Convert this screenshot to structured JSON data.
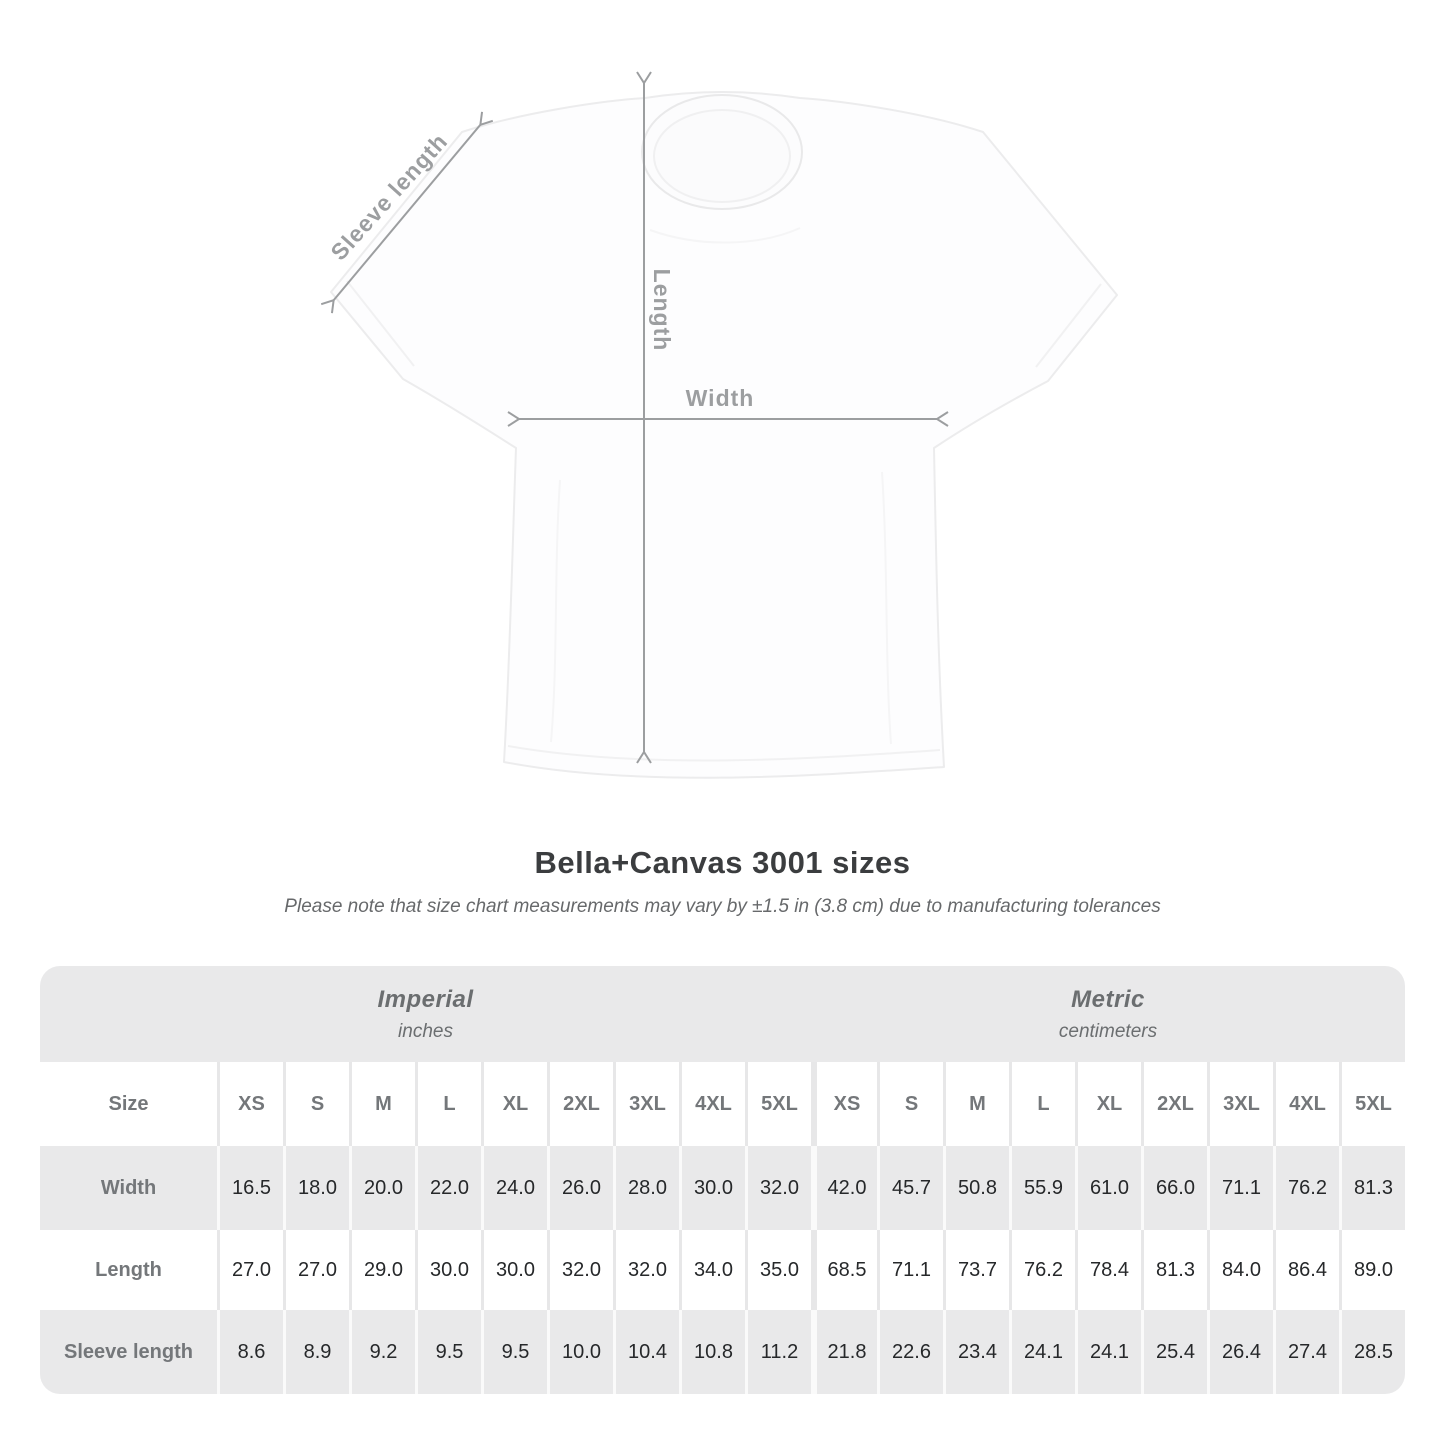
{
  "diagram": {
    "sleeve_label": "Sleeve length",
    "length_label": "Length",
    "width_label": "Width"
  },
  "title": "Bella+Canvas 3001 sizes",
  "subtitle": "Please note that size chart measurements may vary by ±1.5 in (3.8 cm) due to manufacturing tolerances",
  "table": {
    "groups": [
      {
        "name": "Imperial",
        "unit": "inches"
      },
      {
        "name": "Metric",
        "unit": "centimeters"
      }
    ],
    "size_header": "Size",
    "sizes": [
      "XS",
      "S",
      "M",
      "L",
      "XL",
      "2XL",
      "3XL",
      "4XL",
      "5XL"
    ],
    "rows": [
      {
        "label": "Width",
        "imperial": [
          "16.5",
          "18.0",
          "20.0",
          "22.0",
          "24.0",
          "26.0",
          "28.0",
          "30.0",
          "32.0"
        ],
        "metric": [
          "42.0",
          "45.7",
          "50.8",
          "55.9",
          "61.0",
          "66.0",
          "71.1",
          "76.2",
          "81.3"
        ]
      },
      {
        "label": "Length",
        "imperial": [
          "27.0",
          "27.0",
          "29.0",
          "30.0",
          "30.0",
          "32.0",
          "32.0",
          "34.0",
          "35.0"
        ],
        "metric": [
          "68.5",
          "71.1",
          "73.7",
          "76.2",
          "78.4",
          "81.3",
          "84.0",
          "86.4",
          "89.0"
        ]
      },
      {
        "label": "Sleeve length",
        "imperial": [
          "8.6",
          "8.9",
          "9.2",
          "9.5",
          "9.5",
          "10.0",
          "10.4",
          "10.8",
          "11.2"
        ],
        "metric": [
          "21.8",
          "22.6",
          "23.4",
          "24.1",
          "24.1",
          "25.4",
          "26.4",
          "27.4",
          "28.5"
        ]
      }
    ]
  },
  "colors": {
    "table_gray": "#e9e9ea",
    "divider_on_white": "#e7e7e8",
    "divider_on_gray": "#fafafa",
    "label_text": "#74777a",
    "value_text": "#26282a",
    "annotation_gray": "#9c9ea0",
    "title_text": "#3b3d3f",
    "subtitle_text": "#67696b",
    "shirt_outline": "#ececed"
  },
  "chart_data": {
    "type": "table",
    "title": "Bella+Canvas 3001 sizes",
    "note": "Size chart measurements may vary by ±1.5 in (3.8 cm) due to manufacturing tolerances",
    "columns": [
      "XS",
      "S",
      "M",
      "L",
      "XL",
      "2XL",
      "3XL",
      "4XL",
      "5XL"
    ],
    "units": {
      "imperial": "inches",
      "metric": "centimeters"
    },
    "rows": [
      {
        "measurement": "Width",
        "imperial_in": [
          16.5,
          18.0,
          20.0,
          22.0,
          24.0,
          26.0,
          28.0,
          30.0,
          32.0
        ],
        "metric_cm": [
          42.0,
          45.7,
          50.8,
          55.9,
          61.0,
          66.0,
          71.1,
          76.2,
          81.3
        ]
      },
      {
        "measurement": "Length",
        "imperial_in": [
          27.0,
          27.0,
          29.0,
          30.0,
          30.0,
          32.0,
          32.0,
          34.0,
          35.0
        ],
        "metric_cm": [
          68.5,
          71.1,
          73.7,
          76.2,
          78.4,
          81.3,
          84.0,
          86.4,
          89.0
        ]
      },
      {
        "measurement": "Sleeve length",
        "imperial_in": [
          8.6,
          8.9,
          9.2,
          9.5,
          9.5,
          10.0,
          10.4,
          10.8,
          11.2
        ],
        "metric_cm": [
          21.8,
          22.6,
          23.4,
          24.1,
          24.1,
          25.4,
          26.4,
          27.4,
          28.5
        ]
      }
    ]
  }
}
